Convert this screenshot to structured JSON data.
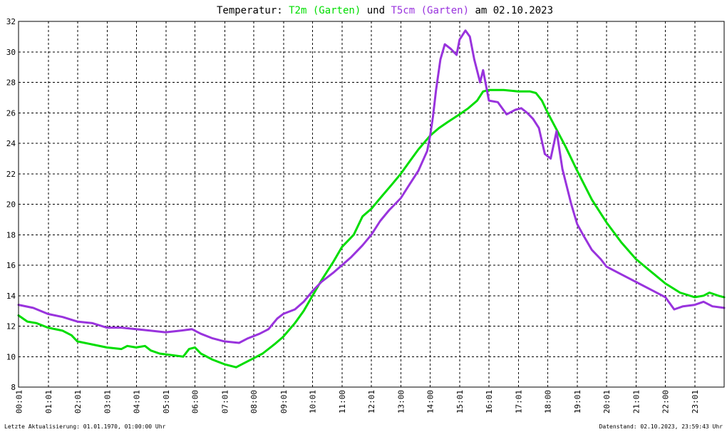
{
  "chart_data": {
    "type": "line",
    "title": {
      "prefix": "Temperatur: ",
      "series1": "T2m (Garten)",
      "connector": " und ",
      "series2": "T5cm (Garten)",
      "suffix": " am 02.10.2023"
    },
    "xlabel": "",
    "ylabel": "",
    "x_range": [
      0,
      24
    ],
    "ylim": [
      8,
      32
    ],
    "y_ticks": [
      8,
      10,
      12,
      14,
      16,
      18,
      20,
      22,
      24,
      26,
      28,
      30,
      32
    ],
    "x_ticks": [
      {
        "x": 0.0167,
        "label": "00:01"
      },
      {
        "x": 1.0167,
        "label": "01:01"
      },
      {
        "x": 2.0167,
        "label": "02:01"
      },
      {
        "x": 3.0167,
        "label": "03:01"
      },
      {
        "x": 4.0167,
        "label": "04:01"
      },
      {
        "x": 5.0167,
        "label": "05:01"
      },
      {
        "x": 6.0,
        "label": "06:00"
      },
      {
        "x": 7.0167,
        "label": "07:01"
      },
      {
        "x": 8.0,
        "label": "08:00"
      },
      {
        "x": 9.0167,
        "label": "09:01"
      },
      {
        "x": 10.0,
        "label": "10:01"
      },
      {
        "x": 11.0,
        "label": "11:00"
      },
      {
        "x": 12.0,
        "label": "12:01"
      },
      {
        "x": 13.0,
        "label": "13:00"
      },
      {
        "x": 14.0,
        "label": "14:00"
      },
      {
        "x": 15.0,
        "label": "15:01"
      },
      {
        "x": 16.0,
        "label": "16:01"
      },
      {
        "x": 17.0,
        "label": "17:01"
      },
      {
        "x": 18.0,
        "label": "18:00"
      },
      {
        "x": 19.0,
        "label": "19:01"
      },
      {
        "x": 20.0,
        "label": "20:01"
      },
      {
        "x": 21.0,
        "label": "21:01"
      },
      {
        "x": 22.0,
        "label": "22:00"
      },
      {
        "x": 23.0,
        "label": "23:01"
      }
    ],
    "grid": true,
    "series": [
      {
        "name": "T2m (Garten)",
        "color": "#00dd00",
        "points": [
          [
            0,
            12.7
          ],
          [
            0.3,
            12.3
          ],
          [
            0.6,
            12.2
          ],
          [
            1,
            11.9
          ],
          [
            1.5,
            11.7
          ],
          [
            1.8,
            11.4
          ],
          [
            2,
            11.0
          ],
          [
            2.5,
            10.8
          ],
          [
            3,
            10.6
          ],
          [
            3.5,
            10.5
          ],
          [
            3.7,
            10.7
          ],
          [
            4,
            10.6
          ],
          [
            4.3,
            10.7
          ],
          [
            4.5,
            10.4
          ],
          [
            4.8,
            10.2
          ],
          [
            5.2,
            10.1
          ],
          [
            5.6,
            10.0
          ],
          [
            5.8,
            10.5
          ],
          [
            6,
            10.6
          ],
          [
            6.2,
            10.2
          ],
          [
            6.6,
            9.8
          ],
          [
            7,
            9.5
          ],
          [
            7.4,
            9.3
          ],
          [
            7.7,
            9.6
          ],
          [
            8,
            9.9
          ],
          [
            8.3,
            10.2
          ],
          [
            8.7,
            10.8
          ],
          [
            9,
            11.3
          ],
          [
            9.4,
            12.2
          ],
          [
            9.7,
            13.0
          ],
          [
            10,
            14.0
          ],
          [
            10.3,
            15.0
          ],
          [
            10.7,
            16.2
          ],
          [
            11,
            17.2
          ],
          [
            11.4,
            18.0
          ],
          [
            11.7,
            19.2
          ],
          [
            12,
            19.7
          ],
          [
            12.3,
            20.4
          ],
          [
            12.7,
            21.3
          ],
          [
            13,
            22.0
          ],
          [
            13.3,
            22.8
          ],
          [
            13.6,
            23.6
          ],
          [
            14,
            24.5
          ],
          [
            14.3,
            25.0
          ],
          [
            14.6,
            25.4
          ],
          [
            15,
            25.9
          ],
          [
            15.3,
            26.3
          ],
          [
            15.6,
            26.8
          ],
          [
            15.8,
            27.4
          ],
          [
            16,
            27.5
          ],
          [
            16.5,
            27.5
          ],
          [
            17,
            27.4
          ],
          [
            17.4,
            27.4
          ],
          [
            17.6,
            27.3
          ],
          [
            17.8,
            26.8
          ],
          [
            18,
            26.0
          ],
          [
            18.3,
            24.9
          ],
          [
            18.6,
            23.8
          ],
          [
            19,
            22.2
          ],
          [
            19.5,
            20.3
          ],
          [
            20,
            18.8
          ],
          [
            20.5,
            17.5
          ],
          [
            21,
            16.4
          ],
          [
            21.5,
            15.6
          ],
          [
            22,
            14.8
          ],
          [
            22.5,
            14.2
          ],
          [
            23,
            13.9
          ],
          [
            23.3,
            14.0
          ],
          [
            23.5,
            14.2
          ],
          [
            23.8,
            14.0
          ],
          [
            24,
            13.9
          ]
        ]
      },
      {
        "name": "T5cm (Garten)",
        "color": "#9933dd",
        "points": [
          [
            0,
            13.4
          ],
          [
            0.5,
            13.2
          ],
          [
            1,
            12.8
          ],
          [
            1.5,
            12.6
          ],
          [
            2,
            12.3
          ],
          [
            2.5,
            12.2
          ],
          [
            3,
            11.9
          ],
          [
            3.5,
            11.9
          ],
          [
            4,
            11.8
          ],
          [
            4.5,
            11.7
          ],
          [
            5,
            11.6
          ],
          [
            5.5,
            11.7
          ],
          [
            5.9,
            11.8
          ],
          [
            6.2,
            11.5
          ],
          [
            6.6,
            11.2
          ],
          [
            7,
            11.0
          ],
          [
            7.5,
            10.9
          ],
          [
            7.8,
            11.2
          ],
          [
            8.2,
            11.5
          ],
          [
            8.5,
            11.8
          ],
          [
            8.8,
            12.5
          ],
          [
            9,
            12.8
          ],
          [
            9.4,
            13.1
          ],
          [
            9.7,
            13.6
          ],
          [
            10,
            14.3
          ],
          [
            10.3,
            14.9
          ],
          [
            10.7,
            15.5
          ],
          [
            11,
            16.0
          ],
          [
            11.3,
            16.5
          ],
          [
            11.7,
            17.3
          ],
          [
            12,
            18.0
          ],
          [
            12.3,
            18.9
          ],
          [
            12.6,
            19.6
          ],
          [
            13,
            20.4
          ],
          [
            13.3,
            21.3
          ],
          [
            13.6,
            22.2
          ],
          [
            13.9,
            23.5
          ],
          [
            14,
            24.5
          ],
          [
            14.1,
            25.8
          ],
          [
            14.2,
            27.5
          ],
          [
            14.35,
            29.5
          ],
          [
            14.5,
            30.5
          ],
          [
            14.7,
            30.2
          ],
          [
            14.9,
            29.8
          ],
          [
            15,
            30.8
          ],
          [
            15.2,
            31.4
          ],
          [
            15.35,
            31.0
          ],
          [
            15.5,
            29.5
          ],
          [
            15.7,
            28.0
          ],
          [
            15.8,
            28.8
          ],
          [
            16,
            26.8
          ],
          [
            16.3,
            26.7
          ],
          [
            16.6,
            25.9
          ],
          [
            16.9,
            26.2
          ],
          [
            17.1,
            26.3
          ],
          [
            17.3,
            26.0
          ],
          [
            17.5,
            25.6
          ],
          [
            17.7,
            25.0
          ],
          [
            17.9,
            23.3
          ],
          [
            18.1,
            23.0
          ],
          [
            18.3,
            24.8
          ],
          [
            18.5,
            22.3
          ],
          [
            18.8,
            20.0
          ],
          [
            19,
            18.7
          ],
          [
            19.2,
            18.0
          ],
          [
            19.5,
            17.0
          ],
          [
            19.8,
            16.4
          ],
          [
            20,
            15.9
          ],
          [
            20.5,
            15.4
          ],
          [
            21,
            14.9
          ],
          [
            21.5,
            14.4
          ],
          [
            22,
            13.9
          ],
          [
            22.3,
            13.1
          ],
          [
            22.6,
            13.3
          ],
          [
            23,
            13.4
          ],
          [
            23.3,
            13.6
          ],
          [
            23.6,
            13.3
          ],
          [
            24,
            13.2
          ]
        ]
      }
    ],
    "footer_left": "Letzte Aktualisierung: 01.01.1970, 01:00:00 Uhr",
    "footer_right": "Datenstand: 02.10.2023, 23:59:43 Uhr"
  }
}
